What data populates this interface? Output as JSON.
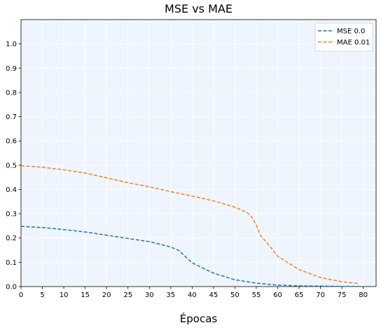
{
  "chart_data": {
    "type": "line",
    "title": "MSE vs MAE",
    "xlabel": "Épocas",
    "ylabel": "",
    "xlim": [
      0,
      83
    ],
    "ylim": [
      0,
      1.1
    ],
    "x_ticks": [
      0,
      5,
      10,
      15,
      20,
      25,
      30,
      35,
      40,
      45,
      50,
      55,
      60,
      65,
      70,
      75,
      80
    ],
    "y_ticks": [
      0.0,
      0.1,
      0.2,
      0.3,
      0.4,
      0.5,
      0.6,
      0.7,
      0.8,
      0.9,
      1.0
    ],
    "grid": true,
    "background_color": "#eef5fe",
    "grid_color": "#ffffff",
    "legend_position": "top-right",
    "series": [
      {
        "name": "MSE 0.0",
        "color": "#1f77b4",
        "style": "dashed",
        "x": [
          0,
          5,
          10,
          15,
          20,
          25,
          30,
          33,
          35,
          37,
          38,
          40,
          45,
          50,
          55,
          60,
          65,
          70,
          75,
          79
        ],
        "y": [
          0.248,
          0.243,
          0.235,
          0.225,
          0.212,
          0.198,
          0.185,
          0.172,
          0.163,
          0.148,
          0.13,
          0.098,
          0.055,
          0.028,
          0.014,
          0.006,
          0.003,
          0.002,
          0.001,
          0.001
        ]
      },
      {
        "name": "MAE 0.01",
        "color": "#ff7f0e",
        "style": "dashed",
        "x": [
          0,
          5,
          10,
          15,
          20,
          25,
          30,
          35,
          40,
          45,
          50,
          53,
          54,
          55,
          56,
          58,
          60,
          65,
          70,
          75,
          79
        ],
        "y": [
          0.498,
          0.492,
          0.481,
          0.468,
          0.448,
          0.428,
          0.411,
          0.391,
          0.373,
          0.353,
          0.327,
          0.303,
          0.285,
          0.252,
          0.21,
          0.17,
          0.125,
          0.07,
          0.037,
          0.02,
          0.012
        ]
      }
    ]
  }
}
